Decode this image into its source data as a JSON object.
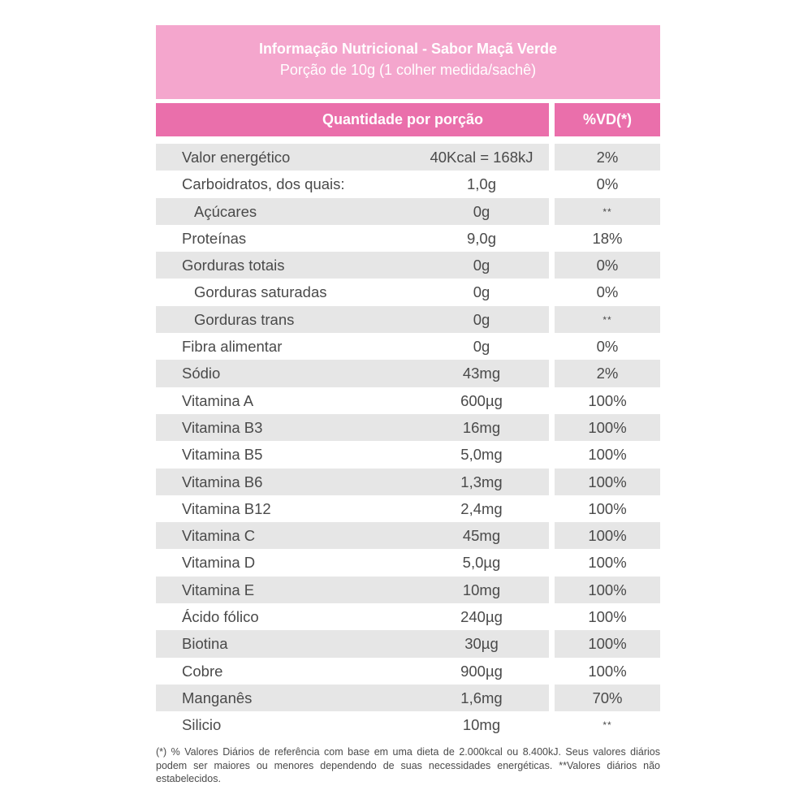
{
  "header": {
    "title": "Informação Nutricional - Sabor Maçã Verde",
    "subtitle": "Porção de 10g (1 colher medida/sachê)"
  },
  "columns": {
    "quantity": "Quantidade por porção",
    "vd": "%VD(*)"
  },
  "rows": [
    {
      "name": "Valor energético",
      "qty": "40Kcal = 168kJ",
      "vd": "2%"
    },
    {
      "name": "Carboidratos, dos quais:",
      "qty": "1,0g",
      "vd": "0%"
    },
    {
      "name": "Açúcares",
      "qty": "0g",
      "vd": "**"
    },
    {
      "name": "Proteínas",
      "qty": "9,0g",
      "vd": "18%"
    },
    {
      "name": "Gorduras totais",
      "qty": "0g",
      "vd": "0%"
    },
    {
      "name": "Gorduras saturadas",
      "qty": "0g",
      "vd": "0%"
    },
    {
      "name": "Gorduras trans",
      "qty": "0g",
      "vd": "**"
    },
    {
      "name": "Fibra alimentar",
      "qty": "0g",
      "vd": "0%"
    },
    {
      "name": "Sódio",
      "qty": "43mg",
      "vd": "2%"
    },
    {
      "name": "Vitamina A",
      "qty": "600µg",
      "vd": "100%"
    },
    {
      "name": "Vitamina B3",
      "qty": "16mg",
      "vd": "100%"
    },
    {
      "name": "Vitamina B5",
      "qty": "5,0mg",
      "vd": "100%"
    },
    {
      "name": "Vitamina B6",
      "qty": "1,3mg",
      "vd": "100%"
    },
    {
      "name": "Vitamina B12",
      "qty": "2,4mg",
      "vd": "100%"
    },
    {
      "name": "Vitamina C",
      "qty": "45mg",
      "vd": "100%"
    },
    {
      "name": "Vitamina D",
      "qty": "5,0µg",
      "vd": "100%"
    },
    {
      "name": "Vitamina E",
      "qty": "10mg",
      "vd": "100%"
    },
    {
      "name": "Ácido fólico",
      "qty": "240µg",
      "vd": "100%"
    },
    {
      "name": "Biotina",
      "qty": "30µg",
      "vd": "100%"
    },
    {
      "name": "Cobre",
      "qty": "900µg",
      "vd": "100%"
    },
    {
      "name": "Manganês",
      "qty": "1,6mg",
      "vd": "70%"
    },
    {
      "name": "Silicio",
      "qty": "10mg",
      "vd": "**"
    }
  ],
  "footnote": "(*) % Valores Diários de referência com base em uma dieta de 2.000kcal ou 8.400kJ. Seus valores diários podem ser maiores ou menores dependendo de suas necessidades energéticas. **Valores diários não estabelecidos.",
  "colors": {
    "title_bg": "#f4a6cd",
    "header_bg": "#ea6fab",
    "row_shade": "#e6e6e6",
    "text": "#4a4a4a"
  }
}
